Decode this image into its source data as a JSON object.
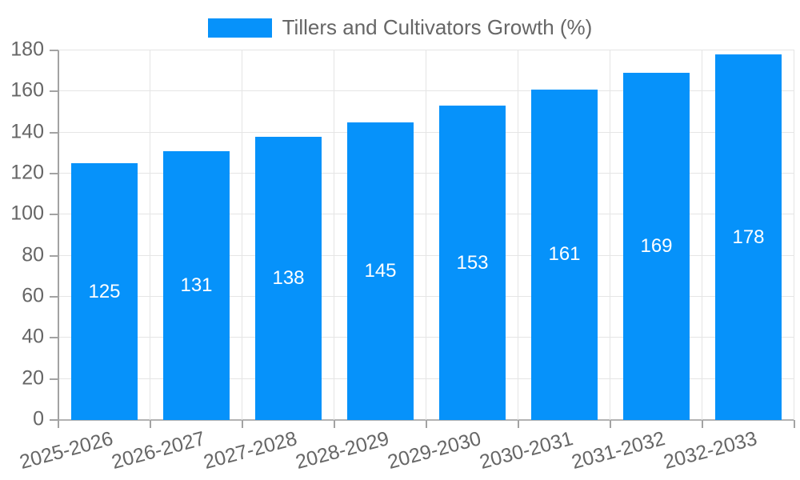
{
  "chart_data": {
    "type": "bar",
    "title": "",
    "legend": {
      "label": "Tillers and Cultivators Growth (%)",
      "position": "top-center"
    },
    "categories": [
      "2025-2026",
      "2026-2027",
      "2027-2028",
      "2028-2029",
      "2029-2030",
      "2030-2031",
      "2031-2032",
      "2032-2033"
    ],
    "series": [
      {
        "name": "Tillers and Cultivators Growth (%)",
        "values": [
          125,
          131,
          138,
          145,
          153,
          161,
          169,
          178
        ]
      }
    ],
    "xlabel": "",
    "ylabel": "",
    "ylim": [
      0,
      180
    ],
    "yticks": [
      0,
      20,
      40,
      60,
      80,
      100,
      120,
      140,
      160,
      180
    ],
    "grid": true,
    "x_tick_rotation_deg": -15,
    "value_labels_shown": true,
    "value_label_position": "inside-middle"
  },
  "colors": {
    "background": "#ffffff",
    "bar": "#0692fa",
    "bar_value_label": "#ffffff",
    "tick_text": "#666666",
    "grid_line": "#e5e5e5",
    "axis_line": "#a3a3a3",
    "baseline": "#b3b3b3"
  }
}
